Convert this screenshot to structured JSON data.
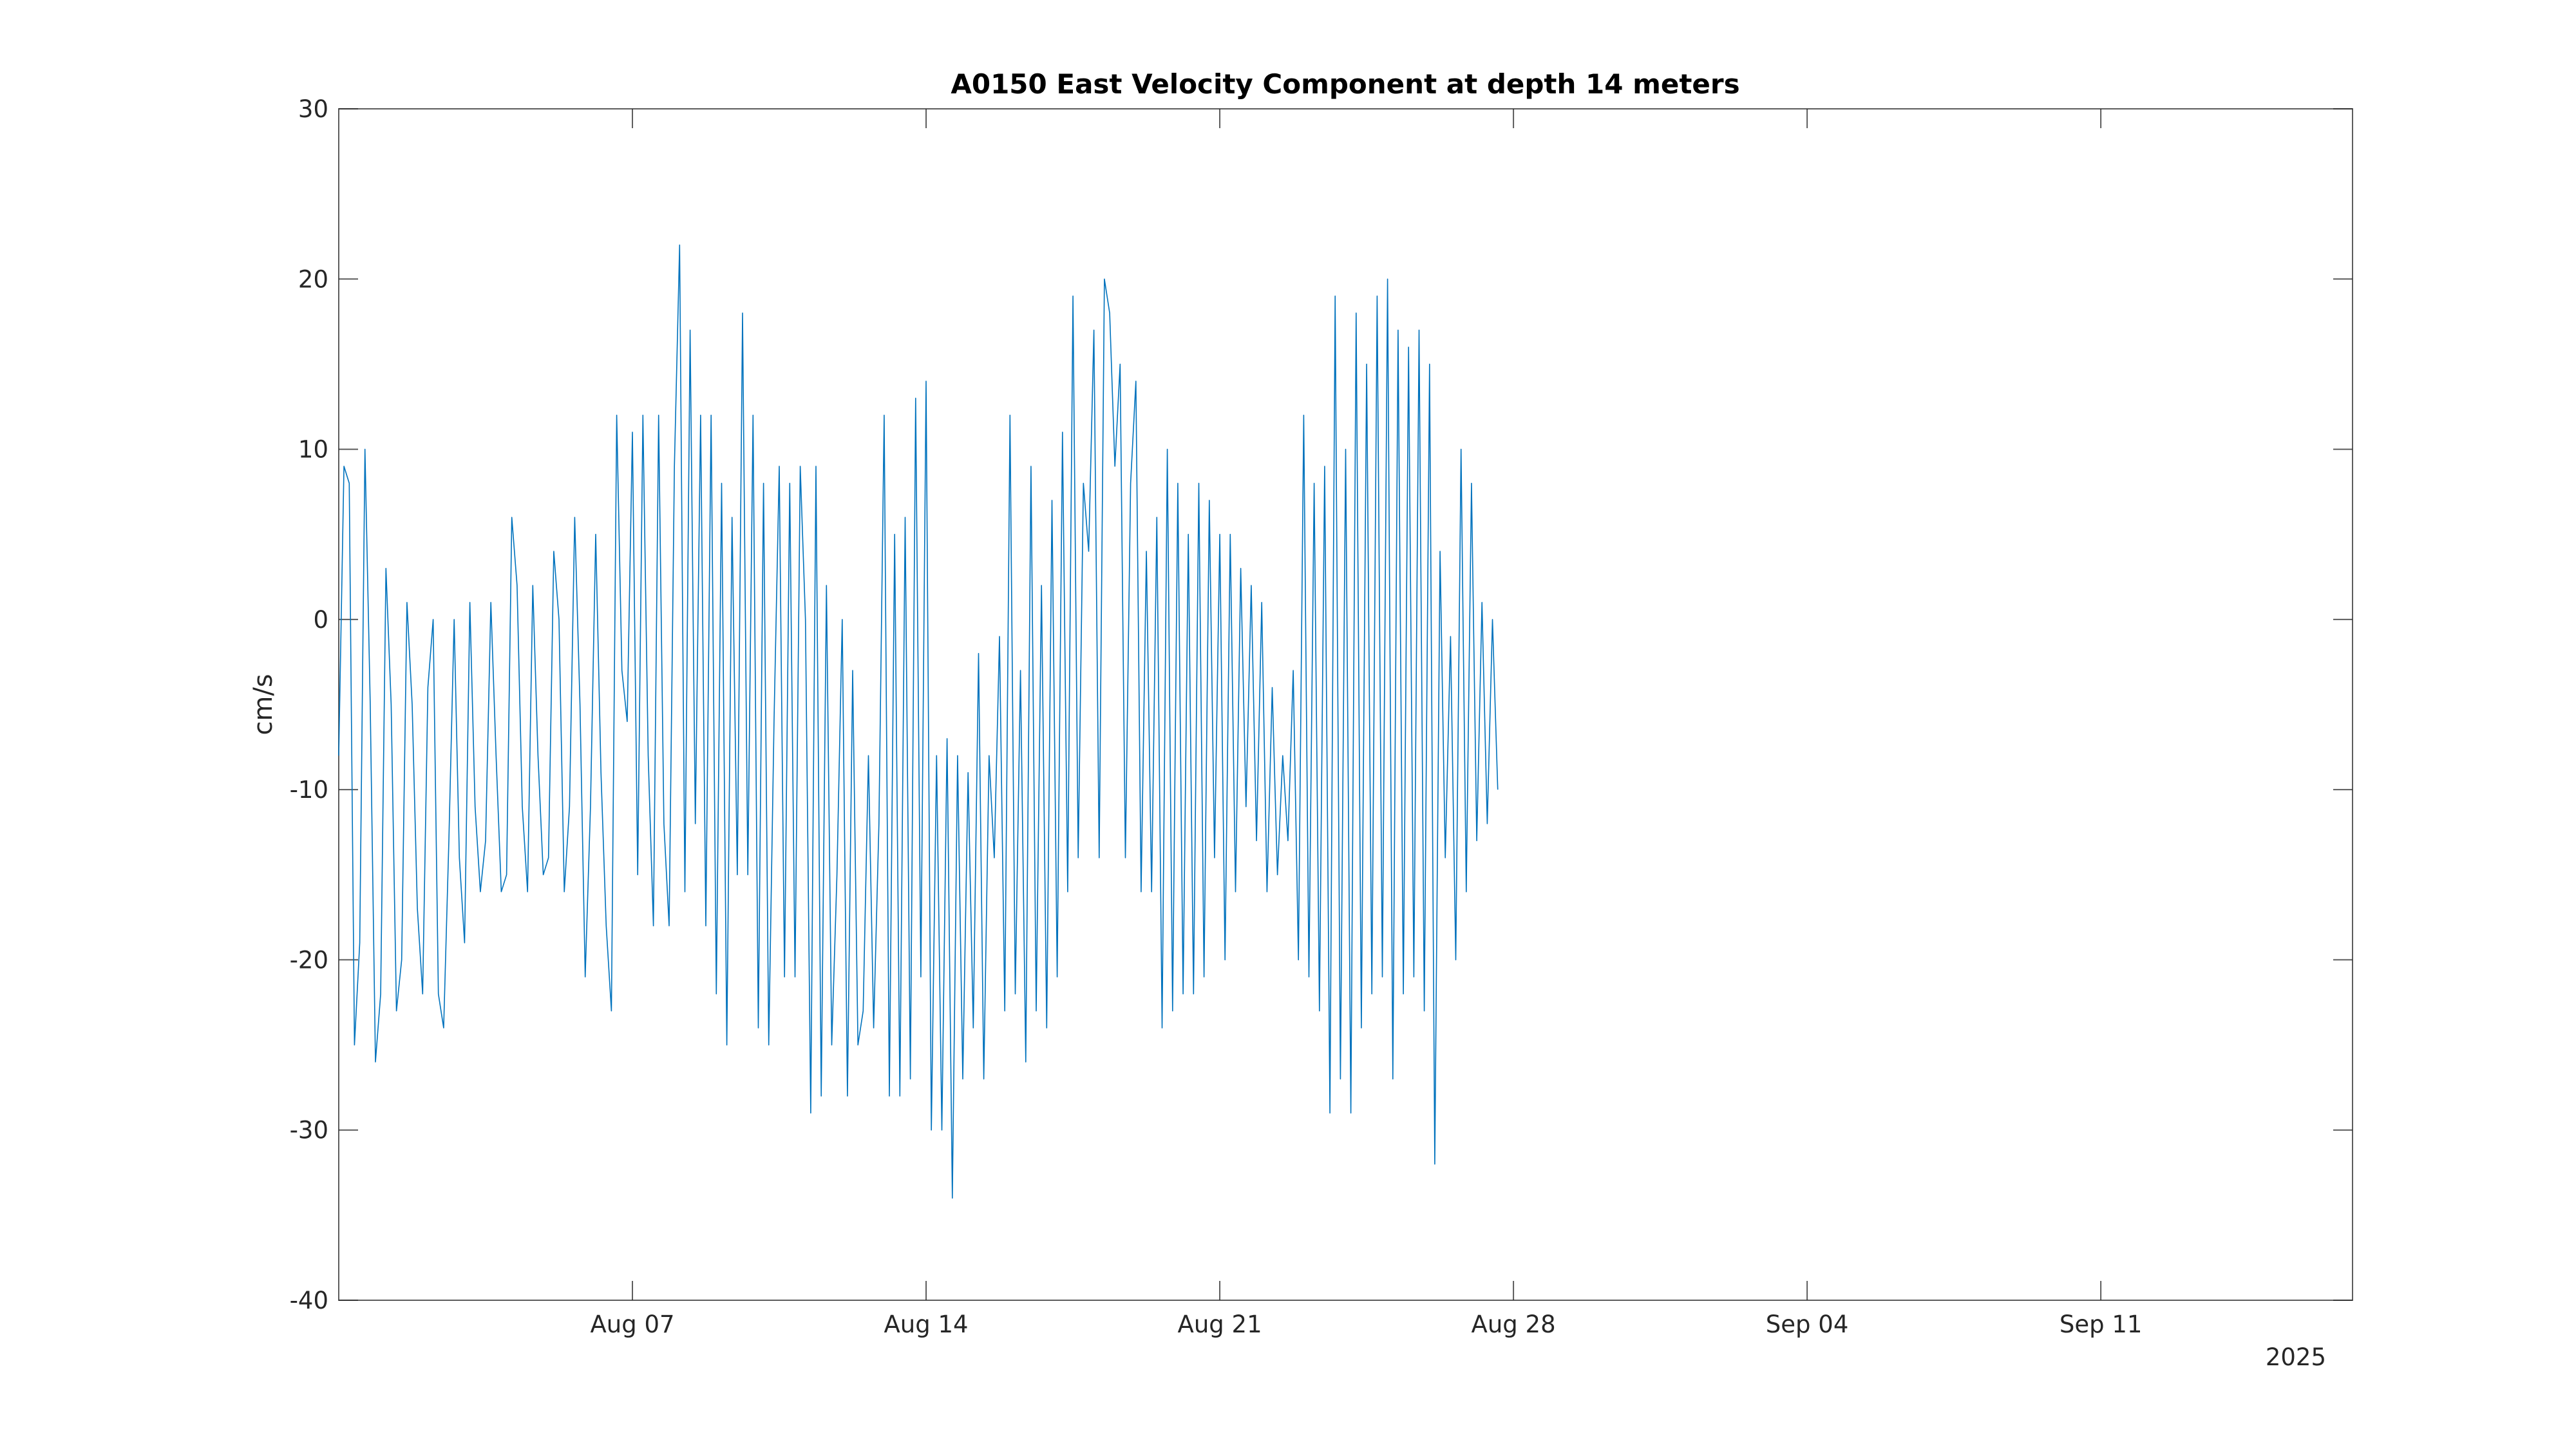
{
  "colors": {
    "series": "#0072BD",
    "axes": "#262626",
    "background": "#ffffff"
  },
  "chart_data": {
    "type": "line",
    "title": "A0150 East Velocity Component at depth 14 meters",
    "xlabel": "",
    "ylabel": "cm/s",
    "x_year_label": "2025",
    "grid": false,
    "legend": "none",
    "xlim": [
      "2025-07-31T00:00",
      "2025-09-17T00:00"
    ],
    "ylim": [
      -40,
      30
    ],
    "yticks": [
      -40,
      -30,
      -20,
      -10,
      0,
      10,
      20,
      30
    ],
    "ytick_labels": [
      "-40",
      "-30",
      "-20",
      "-10",
      "0",
      "10",
      "20",
      "30"
    ],
    "xticks": [
      "2025-08-07",
      "2025-08-14",
      "2025-08-21",
      "2025-08-28",
      "2025-09-04",
      "2025-09-11"
    ],
    "xtick_labels": [
      "Aug 07",
      "Aug 14",
      "Aug 21",
      "Aug 28",
      "Sep 04",
      "Sep 11"
    ],
    "sample_interval_hours": 3,
    "x_start": "2025-07-31T00:00",
    "series": [
      {
        "values": [
          -8,
          9,
          8,
          -25,
          -19,
          10,
          -5,
          -26,
          -22,
          3,
          -5,
          -23,
          -20,
          1,
          -5,
          -17,
          -22,
          -4,
          0,
          -22,
          -24,
          -13,
          0,
          -14,
          -19,
          1,
          -11,
          -16,
          -13,
          1,
          -8,
          -16,
          -15,
          6,
          2,
          -11,
          -16,
          2,
          -8,
          -15,
          -14,
          4,
          0,
          -16,
          -11,
          6,
          -5,
          -21,
          -11,
          5,
          -9,
          -18,
          -23,
          12,
          -3,
          -6,
          11,
          -15,
          12,
          -8,
          -18,
          12,
          -12,
          -18,
          9,
          22,
          -16,
          17,
          -12,
          12,
          -18,
          12,
          -22,
          8,
          -25,
          6,
          -15,
          18,
          -15,
          12,
          -24,
          8,
          -25,
          -6,
          9,
          -21,
          8,
          -21,
          9,
          0,
          -29,
          9,
          -28,
          2,
          -25,
          -15,
          0,
          -28,
          -3,
          -25,
          -23,
          -8,
          -24,
          -12,
          12,
          -28,
          5,
          -28,
          6,
          -27,
          13,
          -21,
          14,
          -30,
          -8,
          -30,
          -7,
          -34,
          -8,
          -27,
          -9,
          -24,
          -2,
          -27,
          -8,
          -14,
          -1,
          -23,
          12,
          -22,
          -3,
          -26,
          9,
          -23,
          2,
          -24,
          7,
          -21,
          11,
          -16,
          19,
          -14,
          8,
          4,
          17,
          -14,
          20,
          18,
          9,
          15,
          -14,
          8,
          14,
          -16,
          4,
          -16,
          6,
          -24,
          10,
          -23,
          8,
          -22,
          5,
          -22,
          8,
          -21,
          7,
          -14,
          5,
          -20,
          5,
          -16,
          3,
          -11,
          2,
          -13,
          1,
          -16,
          -4,
          -15,
          -8,
          -13,
          -3,
          -20,
          12,
          -21,
          8,
          -23,
          9,
          -29,
          19,
          -27,
          10,
          -29,
          18,
          -24,
          15,
          -22,
          19,
          -21,
          20,
          -27,
          17,
          -22,
          16,
          -21,
          17,
          -23,
          15,
          -32,
          4,
          -14,
          -1,
          -20,
          10,
          -16,
          8,
          -13,
          1,
          -12,
          0,
          -10
        ]
      }
    ]
  }
}
